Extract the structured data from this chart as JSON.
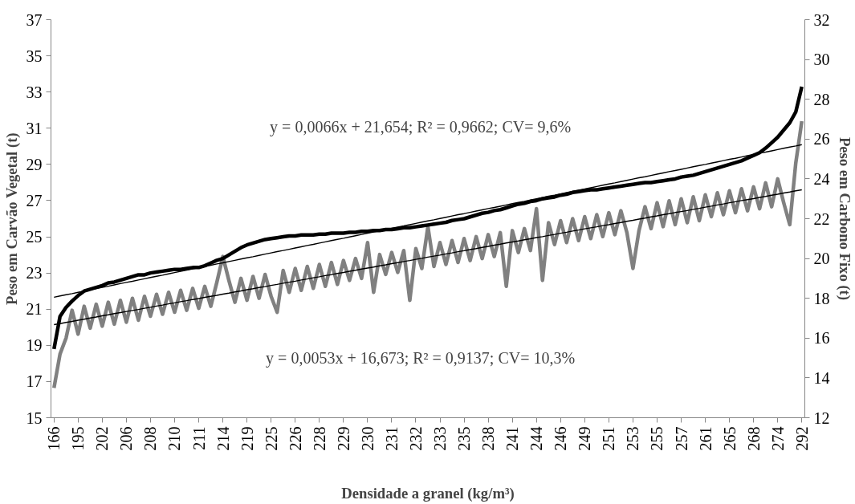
{
  "chart_data": {
    "type": "line",
    "xlabel": "Densidade a granel (kg/m³)",
    "ylabel": "Peso em Carvão Vegetal (t)",
    "y2label": "Peso em Carbono Fixo (t)",
    "annotations": [
      "y = 0,0066x + 21,654; R² = 0,9662; CV= 9,6%",
      "y = 0,0053x + 16,673; R² = 0,9137; CV= 10,3%"
    ],
    "categories": [
      "166",
      null,
      null,
      null,
      "195",
      null,
      null,
      null,
      "202",
      null,
      null,
      null,
      "206",
      null,
      null,
      null,
      "208",
      null,
      null,
      null,
      "210",
      null,
      null,
      null,
      "211",
      null,
      null,
      null,
      "214",
      null,
      null,
      null,
      "219",
      null,
      null,
      null,
      "225",
      null,
      null,
      null,
      "226",
      null,
      null,
      null,
      "228",
      null,
      null,
      null,
      "229",
      null,
      null,
      null,
      "230",
      null,
      null,
      null,
      "231",
      null,
      null,
      null,
      "232",
      null,
      null,
      null,
      "233",
      null,
      null,
      null,
      "235",
      null,
      null,
      null,
      "238",
      null,
      null,
      null,
      "241",
      null,
      null,
      null,
      "244",
      null,
      null,
      null,
      "246",
      null,
      null,
      null,
      "249",
      null,
      null,
      null,
      "251",
      null,
      null,
      null,
      "253",
      null,
      null,
      null,
      "255",
      null,
      null,
      null,
      "257",
      null,
      null,
      null,
      "261",
      null,
      null,
      null,
      "265",
      null,
      null,
      null,
      "268",
      null,
      null,
      null,
      "274",
      null,
      null,
      null,
      "292"
    ],
    "ylim": [
      15,
      37
    ],
    "yticks": [
      15,
      17,
      19,
      21,
      23,
      25,
      27,
      29,
      31,
      33,
      35,
      37
    ],
    "y2lim": [
      12,
      32
    ],
    "y2ticks": [
      12,
      14,
      16,
      18,
      20,
      22,
      24,
      26,
      28,
      30,
      32
    ],
    "line_style": "solid",
    "series": [
      {
        "color": "#808080",
        "axis": "y2",
        "values": [
          13.5,
          15.2,
          16.0,
          17.4,
          16.2,
          17.6,
          16.5,
          17.7,
          16.6,
          17.8,
          16.7,
          17.9,
          16.8,
          18.0,
          16.9,
          18.1,
          17.1,
          18.2,
          17.2,
          18.3,
          17.3,
          18.4,
          17.4,
          18.5,
          17.5,
          18.6,
          17.6,
          18.8,
          20.1,
          18.9,
          17.8,
          19.0,
          17.9,
          19.1,
          18.0,
          19.2,
          18.1,
          17.3,
          19.4,
          18.3,
          19.5,
          18.4,
          19.6,
          18.5,
          19.7,
          18.6,
          19.8,
          18.7,
          19.9,
          18.9,
          20.0,
          19.0,
          20.8,
          18.3,
          20.2,
          19.2,
          20.3,
          19.3,
          20.4,
          17.9,
          20.5,
          19.5,
          21.6,
          19.6,
          20.8,
          19.7,
          20.9,
          19.8,
          21.0,
          19.9,
          21.1,
          20.0,
          21.2,
          20.1,
          21.3,
          18.6,
          21.4,
          20.3,
          21.5,
          20.4,
          22.5,
          18.9,
          21.8,
          20.7,
          21.9,
          20.8,
          22.0,
          20.9,
          22.1,
          21.0,
          22.2,
          21.1,
          22.3,
          21.2,
          22.4,
          21.3,
          19.5,
          21.4,
          22.6,
          21.5,
          22.8,
          21.6,
          22.9,
          21.7,
          23.0,
          21.8,
          23.1,
          21.9,
          23.2,
          22.1,
          23.3,
          22.2,
          23.4,
          22.3,
          23.5,
          22.4,
          23.6,
          22.5,
          23.8,
          22.6,
          24.0,
          22.8,
          21.7,
          24.8,
          26.9
        ]
      },
      {
        "color": "#000000",
        "values": [
          18.8,
          20.6,
          21.1,
          21.45,
          21.75,
          22.0,
          22.1,
          22.2,
          22.3,
          22.45,
          22.5,
          22.6,
          22.7,
          22.8,
          22.9,
          22.9,
          23.0,
          23.05,
          23.1,
          23.15,
          23.2,
          23.2,
          23.25,
          23.3,
          23.3,
          23.4,
          23.55,
          23.7,
          23.8,
          24.0,
          24.2,
          24.4,
          24.55,
          24.65,
          24.75,
          24.85,
          24.9,
          24.95,
          25.0,
          25.05,
          25.05,
          25.1,
          25.1,
          25.1,
          25.15,
          25.15,
          25.2,
          25.2,
          25.2,
          25.25,
          25.25,
          25.3,
          25.3,
          25.35,
          25.35,
          25.4,
          25.4,
          25.45,
          25.5,
          25.5,
          25.55,
          25.6,
          25.65,
          25.7,
          25.75,
          25.8,
          25.9,
          25.95,
          26.0,
          26.1,
          26.2,
          26.3,
          26.35,
          26.45,
          26.5,
          26.6,
          26.7,
          26.8,
          26.85,
          26.95,
          27.0,
          27.1,
          27.15,
          27.2,
          27.3,
          27.35,
          27.45,
          27.5,
          27.55,
          27.6,
          27.6,
          27.65,
          27.7,
          27.75,
          27.8,
          27.85,
          27.9,
          27.95,
          28.0,
          28.0,
          28.05,
          28.1,
          28.15,
          28.2,
          28.3,
          28.35,
          28.4,
          28.5,
          28.6,
          28.7,
          28.8,
          28.9,
          29.0,
          29.1,
          29.2,
          29.35,
          29.5,
          29.65,
          29.9,
          30.2,
          30.5,
          30.9,
          31.3,
          31.9,
          33.3
        ]
      },
      {
        "color": "#000000",
        "values": [
          21.66,
          21.73,
          21.8,
          21.86,
          21.93,
          22.0,
          22.07,
          22.14,
          22.2,
          22.27,
          22.34,
          22.41,
          22.48,
          22.54,
          22.61,
          22.68,
          22.75,
          22.82,
          22.88,
          22.95,
          23.02,
          23.09,
          23.16,
          23.22,
          23.29,
          23.36,
          23.43,
          23.5,
          23.56,
          23.63,
          23.7,
          23.77,
          23.84,
          23.9,
          23.97,
          24.04,
          24.11,
          24.18,
          24.24,
          24.31,
          24.38,
          24.45,
          24.52,
          24.58,
          24.65,
          24.72,
          24.79,
          24.86,
          24.92,
          24.99,
          25.06,
          25.13,
          25.2,
          25.26,
          25.33,
          25.4,
          25.47,
          25.54,
          25.6,
          25.67,
          25.74,
          25.81,
          25.88,
          25.94,
          26.01,
          26.08,
          26.15,
          26.22,
          26.28,
          26.35,
          26.42,
          26.49,
          26.56,
          26.62,
          26.69,
          26.76,
          26.83,
          26.9,
          26.96,
          27.03,
          27.1,
          27.17,
          27.24,
          27.3,
          27.37,
          27.44,
          27.51,
          27.58,
          27.64,
          27.71,
          27.78,
          27.85,
          27.92,
          27.98,
          28.05,
          28.12,
          28.19,
          28.26,
          28.32,
          28.39,
          28.46,
          28.53,
          28.6,
          28.66,
          28.73,
          28.8,
          28.87,
          28.94,
          29.0,
          29.07,
          29.14,
          29.21,
          29.28,
          29.34,
          29.41,
          29.48,
          29.55,
          29.62,
          29.68,
          29.75,
          29.82,
          29.89,
          29.96,
          30.02,
          30.09
        ]
      },
      {
        "color": "#000000",
        "axis": "y2",
        "values": [
          16.68,
          16.73,
          16.79,
          16.84,
          16.9,
          16.95,
          17.01,
          17.06,
          17.12,
          17.17,
          17.23,
          17.28,
          17.34,
          17.39,
          17.44,
          17.5,
          17.55,
          17.61,
          17.66,
          17.72,
          17.77,
          17.83,
          17.88,
          17.94,
          17.99,
          18.05,
          18.1,
          18.15,
          18.21,
          18.26,
          18.32,
          18.37,
          18.43,
          18.48,
          18.54,
          18.59,
          18.65,
          18.7,
          18.76,
          18.81,
          18.86,
          18.92,
          18.97,
          19.03,
          19.08,
          19.14,
          19.19,
          19.25,
          19.3,
          19.36,
          19.41,
          19.47,
          19.52,
          19.57,
          19.63,
          19.68,
          19.74,
          19.79,
          19.85,
          19.9,
          19.96,
          20.01,
          20.07,
          20.12,
          20.17,
          20.23,
          20.28,
          20.34,
          20.39,
          20.45,
          20.5,
          20.56,
          20.61,
          20.67,
          20.72,
          20.78,
          20.83,
          20.88,
          20.94,
          20.99,
          21.05,
          21.1,
          21.16,
          21.21,
          21.27,
          21.32,
          21.38,
          21.43,
          21.49,
          21.54,
          21.59,
          21.65,
          21.7,
          21.76,
          21.81,
          21.87,
          21.92,
          21.98,
          22.03,
          22.09,
          22.14,
          22.2,
          22.25,
          22.31,
          22.36,
          22.41,
          22.47,
          22.52,
          22.58,
          22.63,
          22.69,
          22.74,
          22.8,
          22.85,
          22.91,
          22.96,
          23.01,
          23.07,
          23.12,
          23.18,
          23.23,
          23.29,
          23.34,
          23.4,
          23.45
        ]
      }
    ]
  }
}
